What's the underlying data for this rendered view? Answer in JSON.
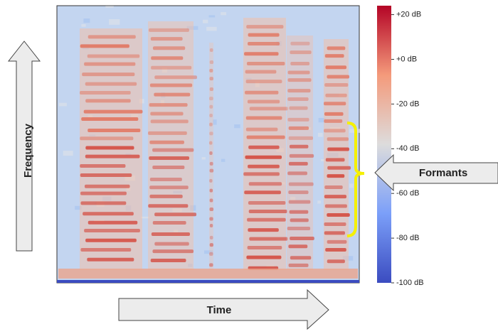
{
  "chart_data": {
    "type": "spectrogram",
    "x_label": "Time",
    "y_label": "Frequency",
    "annotation": "Formants",
    "colormap": "coolwarm",
    "clim": [
      -100,
      24
    ],
    "colorbar_ticks": [
      {
        "value": 20,
        "label": "+20 dB"
      },
      {
        "value": 0,
        "label": "+0 dB"
      },
      {
        "value": -20,
        "label": "-20 dB"
      },
      {
        "value": -40,
        "label": "-40 dB"
      },
      {
        "value": -60,
        "label": "-60 dB"
      },
      {
        "value": -80,
        "label": "-80 dB"
      },
      {
        "value": -100,
        "label": "-100 dB"
      }
    ]
  }
}
